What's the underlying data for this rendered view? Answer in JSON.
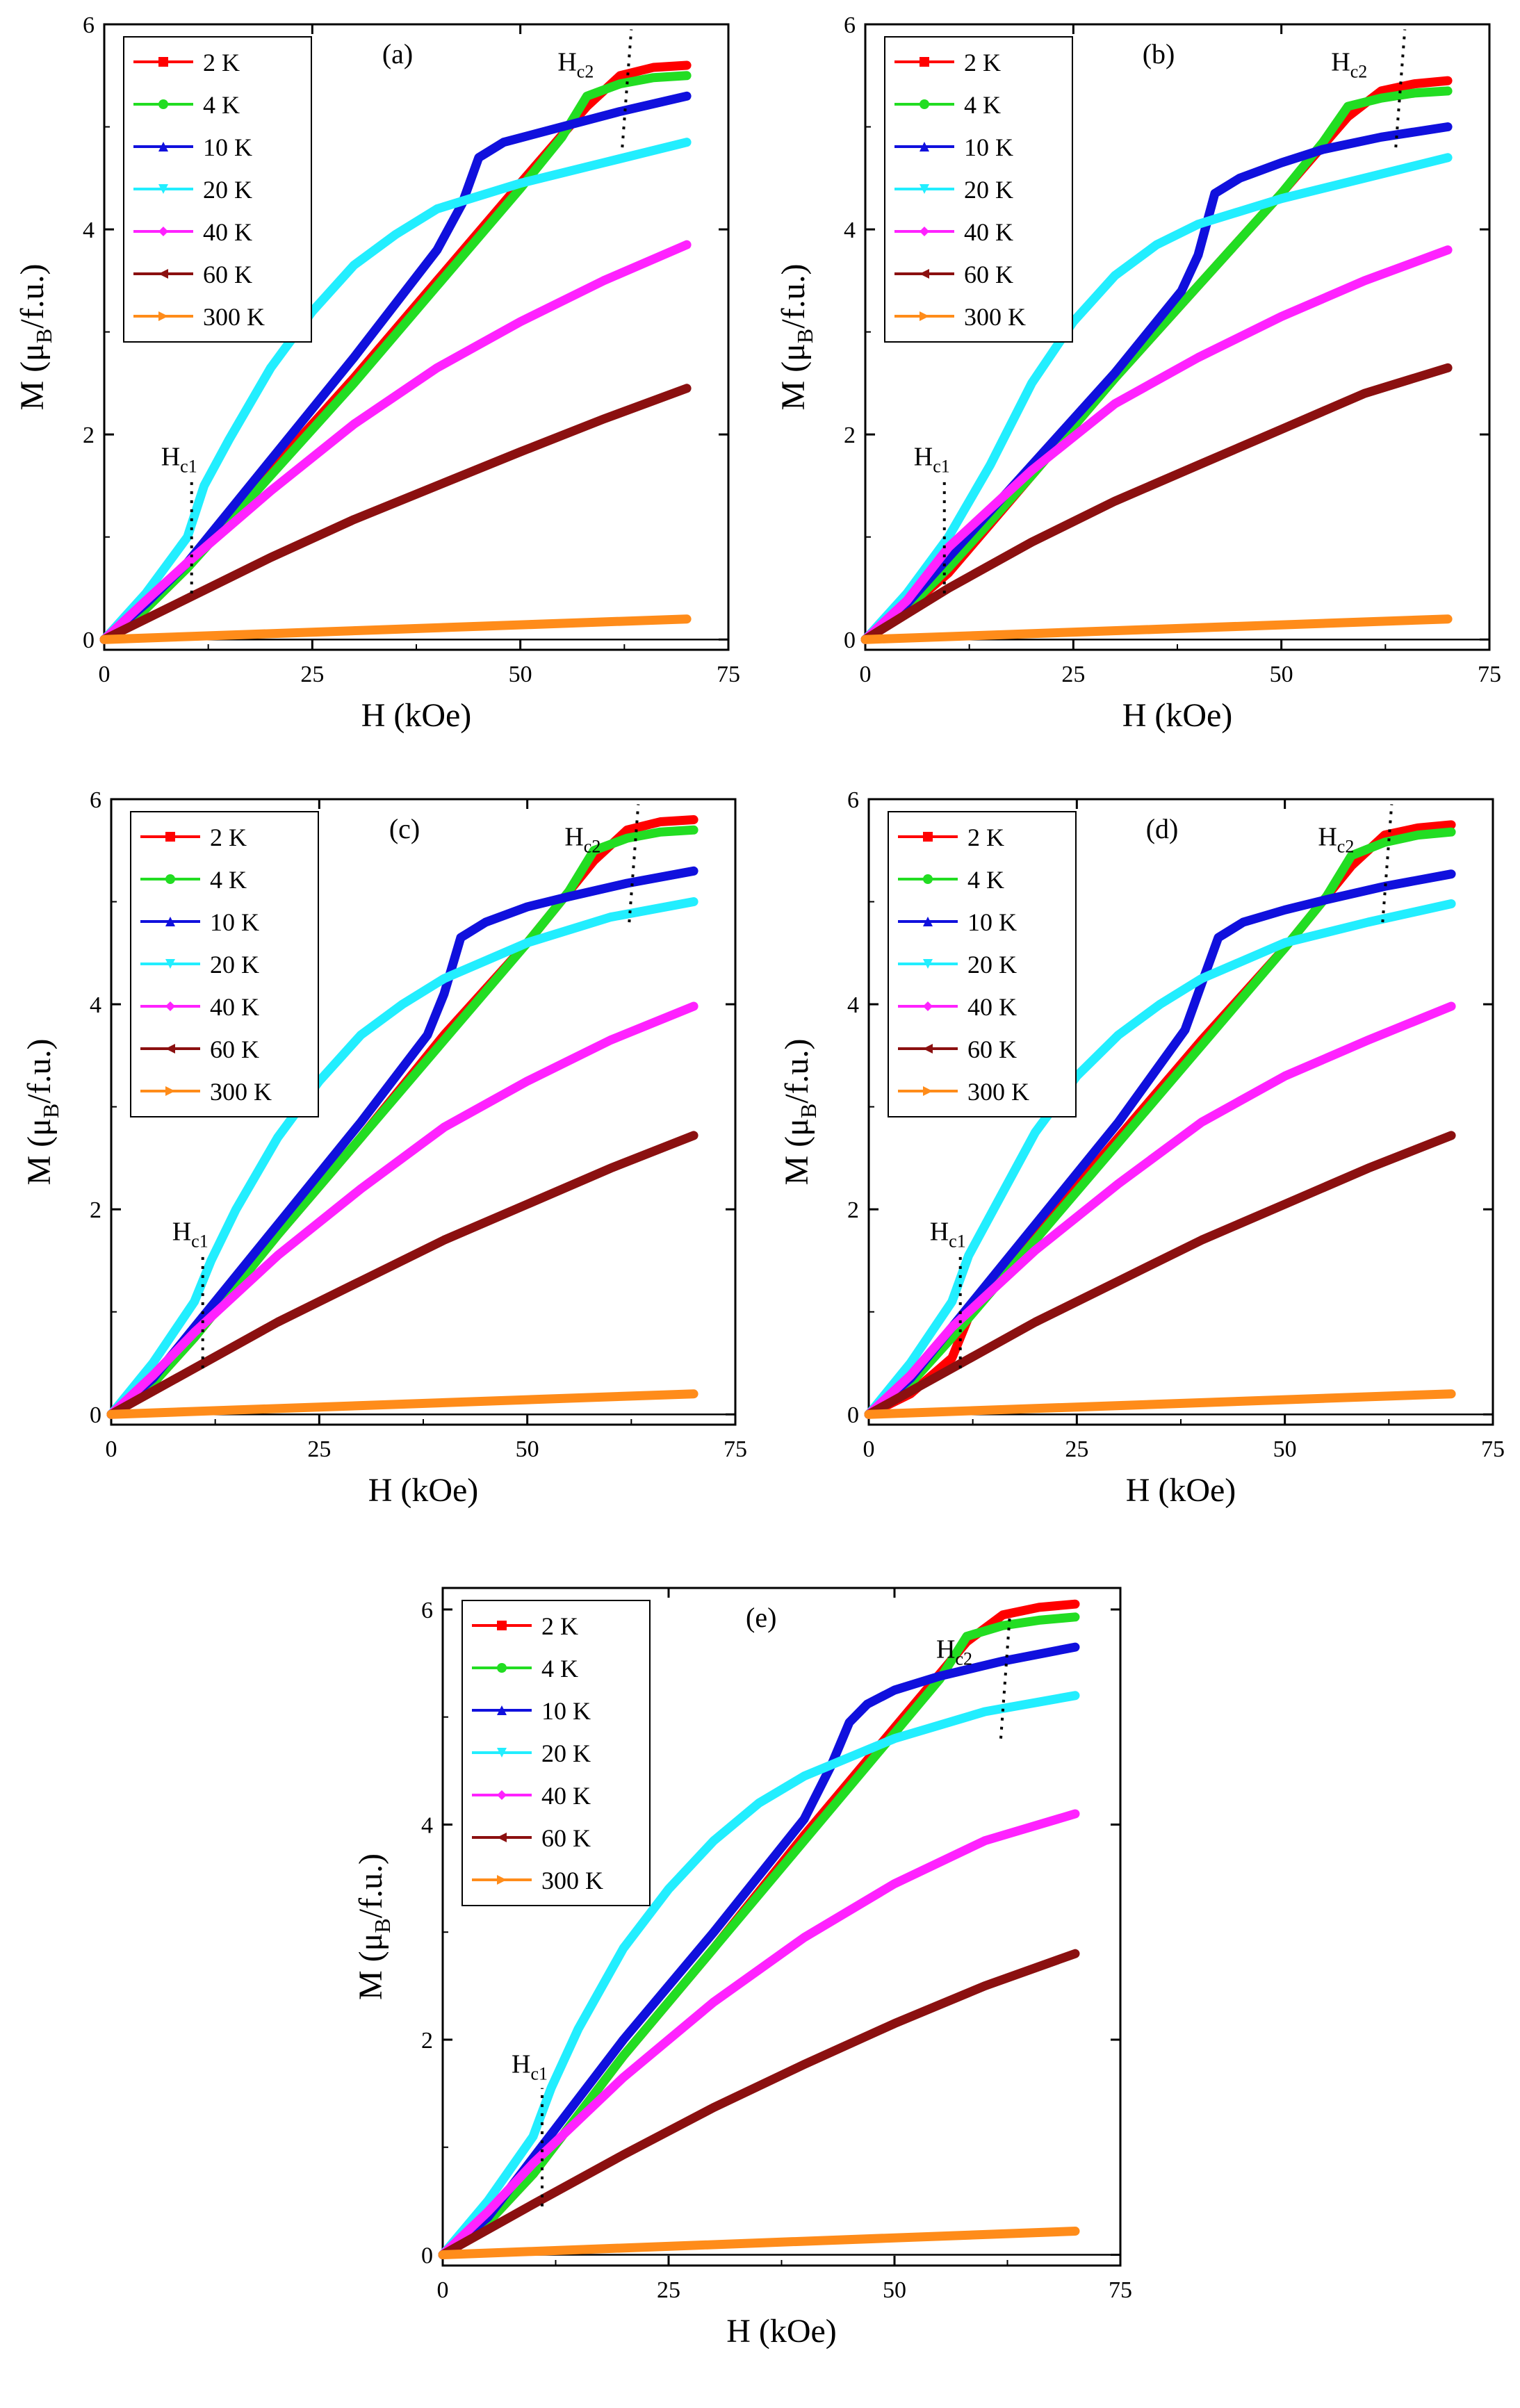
{
  "figure": {
    "description_labels": {
      "x_axis": "H (kOe)",
      "y_axis": "M (μB/f.u.)"
    }
  },
  "series_colors": {
    "2 K": "#ff0000",
    "4 K": "#22dd22",
    "10 K": "#1010dd",
    "20 K": "#22eeff",
    "40 K": "#ff22ff",
    "60 K": "#8b1010",
    "300 K": "#ff8c1a"
  },
  "chart_data": [
    {
      "type": "line",
      "panel": "(a)",
      "xlabel": "H  (kOe)",
      "ylabel_main": "M  (μ",
      "ylabel_sub": "B",
      "ylabel_tail": "/f.u.)",
      "xlim": [
        0,
        75
      ],
      "ylim": [
        -0.1,
        6
      ],
      "xticks": [
        0,
        25,
        50,
        75
      ],
      "yticks": [
        0,
        2,
        4,
        6
      ],
      "hc1_label": "H",
      "hc1_sub": "c1",
      "hc2_label": "H",
      "hc2_sub": "c2",
      "hc1": 10.5,
      "hc2": 62.5,
      "series": [
        {
          "name": "2 K",
          "marker": "square",
          "x": [
            0,
            5,
            10,
            20,
            30,
            40,
            50,
            58,
            62,
            66,
            70
          ],
          "y": [
            0,
            0.3,
            0.7,
            1.65,
            2.55,
            3.5,
            4.45,
            5.2,
            5.5,
            5.58,
            5.6
          ]
        },
        {
          "name": "4 K",
          "marker": "circle",
          "x": [
            0,
            5,
            10,
            20,
            30,
            40,
            50,
            55,
            58,
            62,
            66,
            70
          ],
          "y": [
            0,
            0.3,
            0.7,
            1.6,
            2.5,
            3.45,
            4.4,
            4.9,
            5.3,
            5.42,
            5.48,
            5.5
          ]
        },
        {
          "name": "10 K",
          "marker": "triangle-up",
          "x": [
            0,
            5,
            10,
            15,
            20,
            30,
            40,
            43,
            45,
            48,
            55,
            62,
            70
          ],
          "y": [
            0,
            0.35,
            0.75,
            1.25,
            1.75,
            2.75,
            3.8,
            4.25,
            4.7,
            4.85,
            5.0,
            5.15,
            5.3
          ]
        },
        {
          "name": "20 K",
          "marker": "triangle-down",
          "x": [
            0,
            5,
            10,
            12,
            15,
            20,
            25,
            30,
            35,
            40,
            50,
            60,
            70
          ],
          "y": [
            0,
            0.45,
            1.0,
            1.5,
            1.95,
            2.65,
            3.2,
            3.65,
            3.95,
            4.2,
            4.45,
            4.65,
            4.85
          ]
        },
        {
          "name": "40 K",
          "marker": "diamond",
          "x": [
            0,
            5,
            10,
            20,
            30,
            40,
            50,
            60,
            70
          ],
          "y": [
            0,
            0.38,
            0.75,
            1.45,
            2.1,
            2.65,
            3.1,
            3.5,
            3.85
          ]
        },
        {
          "name": "60 K",
          "marker": "triangle-left",
          "x": [
            0,
            10,
            20,
            30,
            40,
            50,
            60,
            70
          ],
          "y": [
            0,
            0.4,
            0.8,
            1.17,
            1.5,
            1.83,
            2.15,
            2.45
          ]
        },
        {
          "name": "300 K",
          "marker": "triangle-right",
          "x": [
            0,
            35,
            70
          ],
          "y": [
            0,
            0.1,
            0.2
          ]
        }
      ]
    },
    {
      "type": "line",
      "panel": "(b)",
      "xlabel": "H  (kOe)",
      "ylabel_main": "M  (μ",
      "ylabel_sub": "B",
      "ylabel_tail": "/f.u.)",
      "xlim": [
        0,
        75
      ],
      "ylim": [
        -0.1,
        6
      ],
      "xticks": [
        0,
        25,
        50,
        75
      ],
      "yticks": [
        0,
        2,
        4,
        6
      ],
      "hc1_label": "H",
      "hc1_sub": "c1",
      "hc2_label": "H",
      "hc2_sub": "c2",
      "hc1": 9.5,
      "hc2": 64,
      "series": [
        {
          "name": "2 K",
          "marker": "square",
          "x": [
            0,
            5,
            10,
            20,
            30,
            40,
            50,
            58,
            62,
            66,
            70
          ],
          "y": [
            0,
            0.3,
            0.65,
            1.6,
            2.55,
            3.45,
            4.35,
            5.1,
            5.35,
            5.42,
            5.45
          ]
        },
        {
          "name": "4 K",
          "marker": "circle",
          "x": [
            0,
            5,
            10,
            20,
            30,
            40,
            50,
            55,
            58,
            62,
            66,
            70
          ],
          "y": [
            0,
            0.3,
            0.7,
            1.6,
            2.55,
            3.45,
            4.35,
            4.85,
            5.2,
            5.28,
            5.33,
            5.35
          ]
        },
        {
          "name": "10 K",
          "marker": "triangle-up",
          "x": [
            0,
            5,
            10,
            20,
            30,
            38,
            40,
            42,
            45,
            50,
            55,
            62,
            70
          ],
          "y": [
            0,
            0.35,
            0.8,
            1.7,
            2.6,
            3.4,
            3.75,
            4.35,
            4.5,
            4.65,
            4.78,
            4.9,
            5.0
          ]
        },
        {
          "name": "20 K",
          "marker": "triangle-down",
          "x": [
            0,
            5,
            10,
            15,
            20,
            25,
            30,
            35,
            40,
            50,
            60,
            70
          ],
          "y": [
            0,
            0.45,
            1.0,
            1.7,
            2.5,
            3.1,
            3.55,
            3.85,
            4.05,
            4.3,
            4.5,
            4.7
          ]
        },
        {
          "name": "40 K",
          "marker": "diamond",
          "x": [
            0,
            5,
            10,
            20,
            30,
            40,
            50,
            60,
            70
          ],
          "y": [
            0,
            0.38,
            0.9,
            1.65,
            2.3,
            2.75,
            3.15,
            3.5,
            3.8
          ]
        },
        {
          "name": "60 K",
          "marker": "triangle-left",
          "x": [
            0,
            10,
            20,
            30,
            40,
            50,
            60,
            70
          ],
          "y": [
            0,
            0.5,
            0.95,
            1.35,
            1.7,
            2.05,
            2.4,
            2.65
          ]
        },
        {
          "name": "300 K",
          "marker": "triangle-right",
          "x": [
            0,
            35,
            70
          ],
          "y": [
            0,
            0.1,
            0.2
          ]
        }
      ]
    },
    {
      "type": "line",
      "panel": "(c)",
      "xlabel": "H  (kOe)",
      "ylabel_main": "M  (μ",
      "ylabel_sub": "B",
      "ylabel_tail": "/f.u.)",
      "xlim": [
        0,
        75
      ],
      "ylim": [
        -0.1,
        6
      ],
      "xticks": [
        0,
        25,
        50,
        75
      ],
      "yticks": [
        0,
        2,
        4,
        6
      ],
      "hc1_label": "H",
      "hc1_sub": "c1",
      "hc2_label": "H",
      "hc2_sub": "c2",
      "hc1": 11,
      "hc2": 62.5,
      "series": [
        {
          "name": "2 K",
          "marker": "square",
          "x": [
            0,
            5,
            10,
            20,
            30,
            40,
            50,
            58,
            62,
            66,
            70
          ],
          "y": [
            0,
            0.3,
            0.75,
            1.75,
            2.7,
            3.7,
            4.6,
            5.4,
            5.7,
            5.78,
            5.8
          ]
        },
        {
          "name": "4 K",
          "marker": "circle",
          "x": [
            0,
            5,
            10,
            20,
            30,
            40,
            50,
            55,
            58,
            62,
            66,
            70
          ],
          "y": [
            0,
            0.3,
            0.75,
            1.75,
            2.7,
            3.65,
            4.6,
            5.1,
            5.5,
            5.62,
            5.68,
            5.7
          ]
        },
        {
          "name": "10 K",
          "marker": "triangle-up",
          "x": [
            0,
            5,
            10,
            20,
            30,
            38,
            40,
            42,
            45,
            50,
            55,
            62,
            70
          ],
          "y": [
            0,
            0.35,
            0.85,
            1.85,
            2.85,
            3.7,
            4.1,
            4.65,
            4.8,
            4.95,
            5.05,
            5.18,
            5.3
          ]
        },
        {
          "name": "20 K",
          "marker": "triangle-down",
          "x": [
            0,
            5,
            10,
            12,
            15,
            20,
            25,
            30,
            35,
            40,
            50,
            60,
            70
          ],
          "y": [
            0,
            0.5,
            1.1,
            1.5,
            2.0,
            2.7,
            3.25,
            3.7,
            4.0,
            4.25,
            4.6,
            4.85,
            5.0
          ]
        },
        {
          "name": "40 K",
          "marker": "diamond",
          "x": [
            0,
            5,
            10,
            20,
            30,
            40,
            50,
            60,
            70
          ],
          "y": [
            0,
            0.38,
            0.8,
            1.55,
            2.2,
            2.8,
            3.25,
            3.65,
            3.98
          ]
        },
        {
          "name": "60 K",
          "marker": "triangle-left",
          "x": [
            0,
            10,
            20,
            30,
            40,
            50,
            60,
            70
          ],
          "y": [
            0,
            0.45,
            0.9,
            1.3,
            1.7,
            2.05,
            2.4,
            2.72
          ]
        },
        {
          "name": "300 K",
          "marker": "triangle-right",
          "x": [
            0,
            35,
            70
          ],
          "y": [
            0,
            0.1,
            0.2
          ]
        }
      ]
    },
    {
      "type": "line",
      "panel": "(d)",
      "xlabel": "H  (kOe)",
      "ylabel_main": "M  (μ",
      "ylabel_sub": "B",
      "ylabel_tail": "/f.u.)",
      "xlim": [
        0,
        75
      ],
      "ylim": [
        -0.1,
        6
      ],
      "xticks": [
        0,
        25,
        50,
        75
      ],
      "yticks": [
        0,
        2,
        4,
        6
      ],
      "hc1_label": "H",
      "hc1_sub": "c1",
      "hc2_label": "H",
      "hc2_sub": "c2",
      "hc1": 11,
      "hc2": 62,
      "series": [
        {
          "name": "2 K",
          "marker": "square",
          "x": [
            0,
            5,
            10,
            12,
            20,
            30,
            40,
            50,
            58,
            62,
            66,
            70
          ],
          "y": [
            0,
            0.2,
            0.55,
            0.95,
            1.75,
            2.7,
            3.65,
            4.55,
            5.35,
            5.65,
            5.72,
            5.75
          ]
        },
        {
          "name": "4 K",
          "marker": "circle",
          "x": [
            0,
            5,
            10,
            20,
            30,
            40,
            50,
            55,
            58,
            62,
            66,
            70
          ],
          "y": [
            0,
            0.3,
            0.75,
            1.7,
            2.65,
            3.6,
            4.55,
            5.05,
            5.45,
            5.58,
            5.65,
            5.68
          ]
        },
        {
          "name": "10 K",
          "marker": "triangle-up",
          "x": [
            0,
            5,
            10,
            20,
            30,
            38,
            40,
            42,
            45,
            50,
            55,
            62,
            70
          ],
          "y": [
            0,
            0.35,
            0.85,
            1.85,
            2.85,
            3.75,
            4.2,
            4.65,
            4.8,
            4.92,
            5.02,
            5.15,
            5.27
          ]
        },
        {
          "name": "20 K",
          "marker": "triangle-down",
          "x": [
            0,
            5,
            10,
            12,
            15,
            20,
            25,
            30,
            35,
            40,
            50,
            60,
            70
          ],
          "y": [
            0,
            0.5,
            1.1,
            1.55,
            2.0,
            2.75,
            3.3,
            3.7,
            4.0,
            4.25,
            4.6,
            4.8,
            4.98
          ]
        },
        {
          "name": "40 K",
          "marker": "diamond",
          "x": [
            0,
            5,
            10,
            20,
            30,
            40,
            50,
            60,
            70
          ],
          "y": [
            0,
            0.38,
            0.85,
            1.6,
            2.25,
            2.85,
            3.3,
            3.65,
            3.98
          ]
        },
        {
          "name": "60 K",
          "marker": "triangle-left",
          "x": [
            0,
            10,
            20,
            30,
            40,
            50,
            60,
            70
          ],
          "y": [
            0,
            0.45,
            0.9,
            1.3,
            1.7,
            2.05,
            2.4,
            2.72
          ]
        },
        {
          "name": "300 K",
          "marker": "triangle-right",
          "x": [
            0,
            35,
            70
          ],
          "y": [
            0,
            0.1,
            0.2
          ]
        }
      ]
    },
    {
      "type": "line",
      "panel": "(e)",
      "xlabel": "H  (kOe)",
      "ylabel_main": "M  (μ",
      "ylabel_sub": "B",
      "ylabel_tail": "/f.u.)",
      "xlim": [
        0,
        75
      ],
      "ylim": [
        -0.1,
        6.2
      ],
      "xticks": [
        0,
        25,
        50,
        75
      ],
      "yticks": [
        0,
        2,
        4,
        6
      ],
      "hc1_label": "H",
      "hc1_sub": "c1",
      "hc2_label": "H",
      "hc2_sub": "c2",
      "hc1": 11,
      "hc2": 62,
      "series": [
        {
          "name": "2 K",
          "marker": "square",
          "x": [
            0,
            5,
            10,
            20,
            30,
            40,
            50,
            58,
            62,
            66,
            70
          ],
          "y": [
            0,
            0.3,
            0.75,
            1.85,
            2.85,
            3.9,
            4.9,
            5.7,
            5.95,
            6.02,
            6.05
          ]
        },
        {
          "name": "4 K",
          "marker": "circle",
          "x": [
            0,
            5,
            10,
            20,
            30,
            40,
            50,
            55,
            58,
            62,
            66,
            70
          ],
          "y": [
            0,
            0.3,
            0.75,
            1.85,
            2.85,
            3.85,
            4.85,
            5.35,
            5.75,
            5.85,
            5.9,
            5.93
          ]
        },
        {
          "name": "10 K",
          "marker": "triangle-up",
          "x": [
            0,
            5,
            10,
            20,
            30,
            40,
            43,
            45,
            47,
            50,
            55,
            62,
            70
          ],
          "y": [
            0,
            0.35,
            0.9,
            2.0,
            3.0,
            4.05,
            4.55,
            4.95,
            5.12,
            5.25,
            5.38,
            5.52,
            5.65
          ]
        },
        {
          "name": "20 K",
          "marker": "triangle-down",
          "x": [
            0,
            5,
            10,
            12,
            15,
            20,
            25,
            30,
            35,
            40,
            50,
            60,
            70
          ],
          "y": [
            0,
            0.5,
            1.1,
            1.55,
            2.1,
            2.85,
            3.4,
            3.85,
            4.2,
            4.45,
            4.8,
            5.05,
            5.2
          ]
        },
        {
          "name": "40 K",
          "marker": "diamond",
          "x": [
            0,
            5,
            10,
            20,
            30,
            40,
            50,
            60,
            70
          ],
          "y": [
            0,
            0.4,
            0.85,
            1.65,
            2.35,
            2.95,
            3.45,
            3.85,
            4.1
          ]
        },
        {
          "name": "60 K",
          "marker": "triangle-left",
          "x": [
            0,
            10,
            20,
            30,
            40,
            50,
            60,
            70
          ],
          "y": [
            0,
            0.47,
            0.93,
            1.37,
            1.77,
            2.15,
            2.5,
            2.8
          ]
        },
        {
          "name": "300 K",
          "marker": "triangle-right",
          "x": [
            0,
            35,
            70
          ],
          "y": [
            0,
            0.11,
            0.22
          ]
        }
      ]
    }
  ]
}
